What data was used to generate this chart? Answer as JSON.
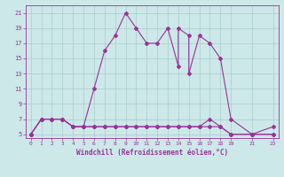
{
  "xlabel": "Windchill (Refroidissement éolien,°C)",
  "bg_color": "#cce8e8",
  "grid_color": "#aacccc",
  "line_color": "#993399",
  "xlim": [
    -0.5,
    23.5
  ],
  "ylim": [
    4.5,
    22
  ],
  "xticks": [
    0,
    1,
    2,
    3,
    4,
    5,
    6,
    7,
    8,
    9,
    10,
    11,
    12,
    13,
    14,
    15,
    16,
    17,
    18,
    19,
    21,
    23
  ],
  "yticks": [
    5,
    7,
    9,
    11,
    13,
    15,
    17,
    19,
    21
  ],
  "series1_x": [
    0,
    1,
    2,
    3,
    4,
    5,
    6,
    7,
    8,
    9,
    10,
    11,
    12,
    13,
    14,
    14,
    15,
    15,
    16,
    17,
    18,
    19,
    21,
    23
  ],
  "series1_y": [
    5,
    7,
    7,
    7,
    6,
    6,
    11,
    16,
    18,
    21,
    19,
    17,
    17,
    19,
    14,
    19,
    18,
    13,
    18,
    17,
    15,
    7,
    5,
    5
  ],
  "series2_x": [
    0,
    1,
    2,
    3,
    4,
    5,
    6,
    7,
    8,
    9,
    10,
    11,
    12,
    13,
    14,
    15,
    16,
    17,
    18,
    19,
    21,
    23
  ],
  "series2_y": [
    5,
    7,
    7,
    7,
    6,
    6,
    6,
    6,
    6,
    6,
    6,
    6,
    6,
    6,
    6,
    6,
    6,
    7,
    6,
    5,
    5,
    6
  ],
  "series3_x": [
    0,
    1,
    2,
    3,
    4,
    5,
    6,
    7,
    8,
    9,
    10,
    11,
    12,
    13,
    14,
    15,
    16,
    17,
    18,
    19,
    21,
    23
  ],
  "series3_y": [
    5,
    7,
    7,
    7,
    6,
    6,
    6,
    6,
    6,
    6,
    6,
    6,
    6,
    6,
    6,
    6,
    6,
    6,
    6,
    5,
    5,
    5
  ]
}
